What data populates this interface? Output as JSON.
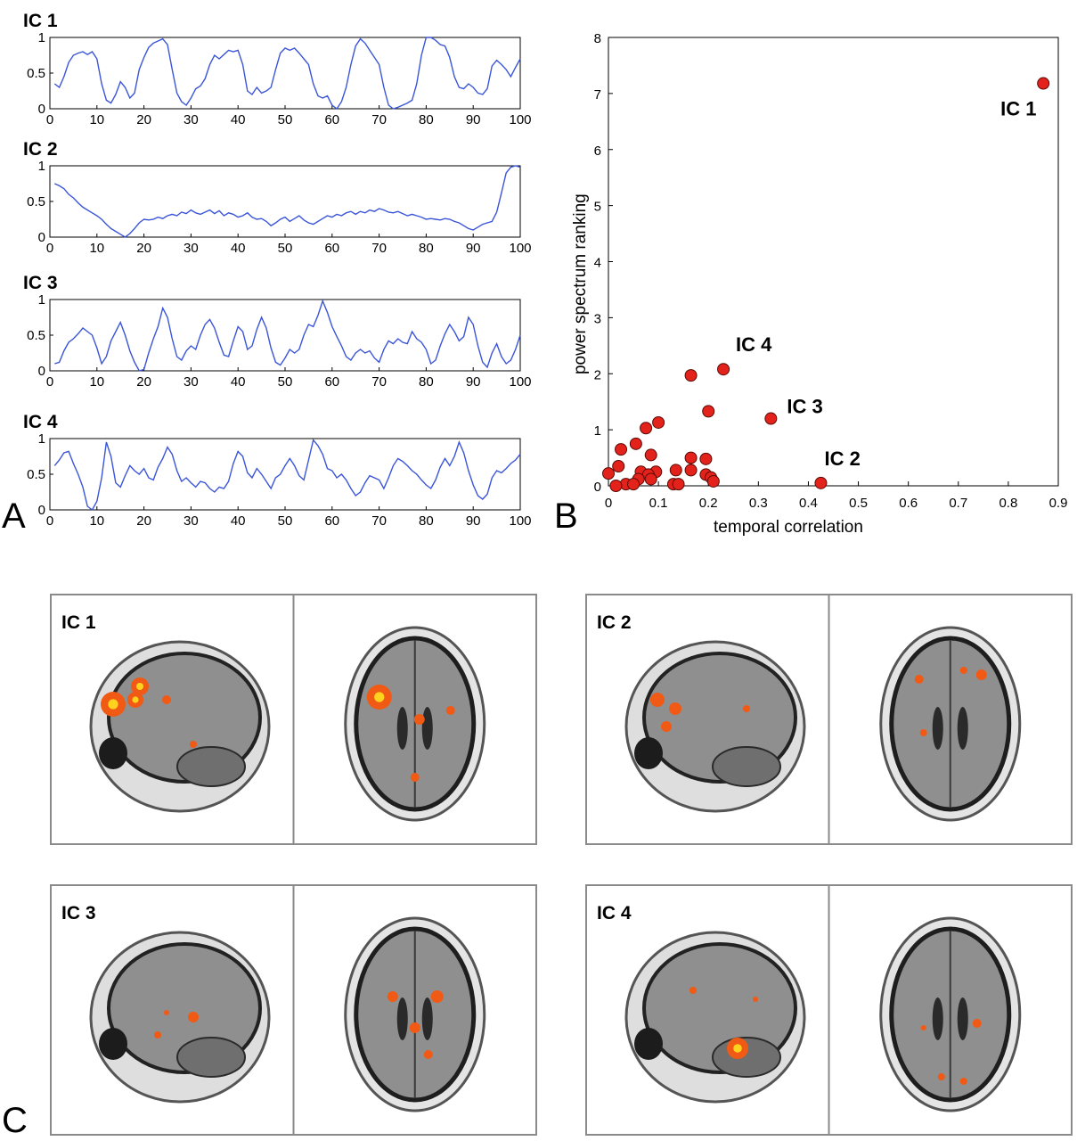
{
  "panel_letters": {
    "a": "A",
    "b": "B",
    "c": "C"
  },
  "colors": {
    "timecourse_line": "#3b55d9",
    "scatter_fill": "#e3231b",
    "scatter_stroke": "#5a0a06",
    "activation": "#f05a14",
    "activation_hot": "#ffd21f",
    "brain_gray": "#8f8f8f",
    "panel_border": "#8a8a8a"
  },
  "chart_data": [
    {
      "type": "line",
      "title": "IC 1",
      "x": [
        1,
        2,
        3,
        4,
        5,
        6,
        7,
        8,
        9,
        10,
        11,
        12,
        13,
        14,
        15,
        16,
        17,
        18,
        19,
        20,
        21,
        22,
        23,
        24,
        25,
        26,
        27,
        28,
        29,
        30,
        31,
        32,
        33,
        34,
        35,
        36,
        37,
        38,
        39,
        40,
        41,
        42,
        43,
        44,
        45,
        46,
        47,
        48,
        49,
        50,
        51,
        52,
        53,
        54,
        55,
        56,
        57,
        58,
        59,
        60,
        61,
        62,
        63,
        64,
        65,
        66,
        67,
        68,
        69,
        70,
        71,
        72,
        73,
        74,
        75,
        76,
        77,
        78,
        79,
        80,
        81,
        82,
        83,
        84,
        85,
        86,
        87,
        88,
        89,
        90,
        91,
        92,
        93,
        94,
        95,
        96,
        97,
        98,
        99,
        100
      ],
      "series": [
        {
          "values": [
            0.35,
            0.3,
            0.45,
            0.65,
            0.75,
            0.78,
            0.8,
            0.76,
            0.8,
            0.7,
            0.35,
            0.12,
            0.08,
            0.2,
            0.38,
            0.3,
            0.15,
            0.22,
            0.55,
            0.72,
            0.86,
            0.92,
            0.95,
            0.98,
            0.9,
            0.55,
            0.22,
            0.1,
            0.05,
            0.15,
            0.28,
            0.32,
            0.42,
            0.62,
            0.75,
            0.7,
            0.76,
            0.82,
            0.8,
            0.82,
            0.62,
            0.25,
            0.2,
            0.3,
            0.22,
            0.25,
            0.3,
            0.55,
            0.78,
            0.85,
            0.82,
            0.85,
            0.78,
            0.7,
            0.62,
            0.35,
            0.18,
            0.15,
            0.18,
            0.05,
            0.0,
            0.1,
            0.3,
            0.62,
            0.88,
            0.98,
            0.92,
            0.82,
            0.72,
            0.62,
            0.3,
            0.05,
            0.0,
            0.02,
            0.05,
            0.08,
            0.12,
            0.35,
            0.75,
            1.0,
            1.0,
            0.96,
            0.9,
            0.88,
            0.72,
            0.45,
            0.3,
            0.28,
            0.35,
            0.3,
            0.22,
            0.2,
            0.28,
            0.6,
            0.68,
            0.62,
            0.55,
            0.45,
            0.58,
            0.7
          ]
        }
      ],
      "xlim": [
        0,
        100
      ],
      "ylim": [
        0,
        1
      ],
      "xticks": [
        "0",
        "10",
        "20",
        "30",
        "40",
        "50",
        "60",
        "70",
        "80",
        "90",
        "100"
      ],
      "yticks": [
        "0",
        "0.5",
        "1"
      ]
    },
    {
      "type": "line",
      "title": "IC 2",
      "x": [
        1,
        2,
        3,
        4,
        5,
        6,
        7,
        8,
        9,
        10,
        11,
        12,
        13,
        14,
        15,
        16,
        17,
        18,
        19,
        20,
        21,
        22,
        23,
        24,
        25,
        26,
        27,
        28,
        29,
        30,
        31,
        32,
        33,
        34,
        35,
        36,
        37,
        38,
        39,
        40,
        41,
        42,
        43,
        44,
        45,
        46,
        47,
        48,
        49,
        50,
        51,
        52,
        53,
        54,
        55,
        56,
        57,
        58,
        59,
        60,
        61,
        62,
        63,
        64,
        65,
        66,
        67,
        68,
        69,
        70,
        71,
        72,
        73,
        74,
        75,
        76,
        77,
        78,
        79,
        80,
        81,
        82,
        83,
        84,
        85,
        86,
        87,
        88,
        89,
        90,
        91,
        92,
        93,
        94,
        95,
        96,
        97,
        98,
        99,
        100
      ],
      "series": [
        {
          "values": [
            0.75,
            0.72,
            0.68,
            0.6,
            0.55,
            0.48,
            0.42,
            0.38,
            0.34,
            0.3,
            0.25,
            0.18,
            0.12,
            0.08,
            0.04,
            0.0,
            0.05,
            0.12,
            0.2,
            0.25,
            0.24,
            0.25,
            0.28,
            0.26,
            0.3,
            0.32,
            0.3,
            0.35,
            0.33,
            0.38,
            0.34,
            0.32,
            0.35,
            0.38,
            0.33,
            0.37,
            0.3,
            0.34,
            0.32,
            0.28,
            0.3,
            0.34,
            0.28,
            0.25,
            0.26,
            0.22,
            0.16,
            0.2,
            0.25,
            0.28,
            0.22,
            0.26,
            0.3,
            0.24,
            0.2,
            0.18,
            0.22,
            0.26,
            0.3,
            0.28,
            0.32,
            0.3,
            0.34,
            0.36,
            0.32,
            0.36,
            0.34,
            0.38,
            0.36,
            0.4,
            0.38,
            0.35,
            0.34,
            0.36,
            0.33,
            0.3,
            0.32,
            0.3,
            0.28,
            0.25,
            0.26,
            0.25,
            0.24,
            0.26,
            0.25,
            0.22,
            0.2,
            0.16,
            0.12,
            0.1,
            0.14,
            0.18,
            0.2,
            0.22,
            0.35,
            0.62,
            0.9,
            0.98,
            1.0,
            0.98
          ]
        }
      ],
      "xlim": [
        0,
        100
      ],
      "ylim": [
        0,
        1
      ],
      "xticks": [
        "0",
        "10",
        "20",
        "30",
        "40",
        "50",
        "60",
        "70",
        "80",
        "90",
        "100"
      ],
      "yticks": [
        "0",
        "0.5",
        "1"
      ]
    },
    {
      "type": "line",
      "title": "IC 3",
      "x": [
        1,
        2,
        3,
        4,
        5,
        6,
        7,
        8,
        9,
        10,
        11,
        12,
        13,
        14,
        15,
        16,
        17,
        18,
        19,
        20,
        21,
        22,
        23,
        24,
        25,
        26,
        27,
        28,
        29,
        30,
        31,
        32,
        33,
        34,
        35,
        36,
        37,
        38,
        39,
        40,
        41,
        42,
        43,
        44,
        45,
        46,
        47,
        48,
        49,
        50,
        51,
        52,
        53,
        54,
        55,
        56,
        57,
        58,
        59,
        60,
        61,
        62,
        63,
        64,
        65,
        66,
        67,
        68,
        69,
        70,
        71,
        72,
        73,
        74,
        75,
        76,
        77,
        78,
        79,
        80,
        81,
        82,
        83,
        84,
        85,
        86,
        87,
        88,
        89,
        90,
        91,
        92,
        93,
        94,
        95,
        96,
        97,
        98,
        99,
        100
      ],
      "series": [
        {
          "values": [
            0.1,
            0.12,
            0.28,
            0.4,
            0.45,
            0.52,
            0.6,
            0.55,
            0.5,
            0.32,
            0.1,
            0.2,
            0.42,
            0.55,
            0.68,
            0.5,
            0.28,
            0.12,
            0.0,
            0.02,
            0.25,
            0.45,
            0.62,
            0.88,
            0.75,
            0.45,
            0.2,
            0.15,
            0.28,
            0.35,
            0.3,
            0.5,
            0.65,
            0.72,
            0.6,
            0.4,
            0.22,
            0.2,
            0.42,
            0.62,
            0.55,
            0.3,
            0.35,
            0.58,
            0.75,
            0.6,
            0.32,
            0.12,
            0.08,
            0.18,
            0.3,
            0.25,
            0.3,
            0.5,
            0.65,
            0.62,
            0.78,
            0.98,
            0.82,
            0.62,
            0.48,
            0.35,
            0.2,
            0.15,
            0.25,
            0.3,
            0.25,
            0.28,
            0.18,
            0.12,
            0.3,
            0.42,
            0.38,
            0.45,
            0.4,
            0.38,
            0.55,
            0.45,
            0.4,
            0.3,
            0.1,
            0.15,
            0.35,
            0.52,
            0.65,
            0.55,
            0.42,
            0.48,
            0.75,
            0.65,
            0.35,
            0.12,
            0.05,
            0.25,
            0.38,
            0.2,
            0.1,
            0.15,
            0.3,
            0.5
          ]
        }
      ],
      "xlim": [
        0,
        100
      ],
      "ylim": [
        0,
        1
      ],
      "xticks": [
        "0",
        "10",
        "20",
        "30",
        "40",
        "50",
        "60",
        "70",
        "80",
        "90",
        "100"
      ],
      "yticks": [
        "0",
        "0.5",
        "1"
      ]
    },
    {
      "type": "line",
      "title": "IC 4",
      "x": [
        1,
        2,
        3,
        4,
        5,
        6,
        7,
        8,
        9,
        10,
        11,
        12,
        13,
        14,
        15,
        16,
        17,
        18,
        19,
        20,
        21,
        22,
        23,
        24,
        25,
        26,
        27,
        28,
        29,
        30,
        31,
        32,
        33,
        34,
        35,
        36,
        37,
        38,
        39,
        40,
        41,
        42,
        43,
        44,
        45,
        46,
        47,
        48,
        49,
        50,
        51,
        52,
        53,
        54,
        55,
        56,
        57,
        58,
        59,
        60,
        61,
        62,
        63,
        64,
        65,
        66,
        67,
        68,
        69,
        70,
        71,
        72,
        73,
        74,
        75,
        76,
        77,
        78,
        79,
        80,
        81,
        82,
        83,
        84,
        85,
        86,
        87,
        88,
        89,
        90,
        91,
        92,
        93,
        94,
        95,
        96,
        97,
        98,
        99,
        100
      ],
      "series": [
        {
          "values": [
            0.62,
            0.7,
            0.8,
            0.82,
            0.65,
            0.5,
            0.32,
            0.05,
            0.0,
            0.12,
            0.45,
            0.95,
            0.75,
            0.38,
            0.32,
            0.48,
            0.62,
            0.55,
            0.5,
            0.58,
            0.45,
            0.42,
            0.6,
            0.72,
            0.88,
            0.78,
            0.55,
            0.4,
            0.45,
            0.38,
            0.32,
            0.4,
            0.38,
            0.3,
            0.25,
            0.32,
            0.3,
            0.4,
            0.65,
            0.82,
            0.75,
            0.52,
            0.45,
            0.58,
            0.5,
            0.4,
            0.3,
            0.45,
            0.5,
            0.62,
            0.72,
            0.62,
            0.48,
            0.42,
            0.7,
            0.98,
            0.9,
            0.78,
            0.58,
            0.55,
            0.45,
            0.5,
            0.42,
            0.3,
            0.2,
            0.25,
            0.38,
            0.48,
            0.45,
            0.42,
            0.3,
            0.45,
            0.62,
            0.72,
            0.68,
            0.62,
            0.55,
            0.5,
            0.42,
            0.35,
            0.3,
            0.42,
            0.6,
            0.72,
            0.62,
            0.75,
            0.95,
            0.8,
            0.55,
            0.35,
            0.2,
            0.15,
            0.22,
            0.45,
            0.55,
            0.52,
            0.58,
            0.65,
            0.7,
            0.78
          ]
        }
      ],
      "xlim": [
        0,
        100
      ],
      "ylim": [
        0,
        1
      ],
      "xticks": [
        "0",
        "10",
        "20",
        "30",
        "40",
        "50",
        "60",
        "70",
        "80",
        "90",
        "100"
      ],
      "yticks": [
        "0",
        "0.5",
        "1"
      ]
    },
    {
      "type": "scatter",
      "xlabel": "temporal correlation",
      "ylabel": "power spectrum ranking",
      "xlim": [
        0,
        0.9
      ],
      "ylim": [
        0,
        8
      ],
      "xticks": [
        "0",
        "0.1",
        "0.2",
        "0.3",
        "0.4",
        "0.5",
        "0.6",
        "0.7",
        "0.8",
        "0.9"
      ],
      "yticks": [
        "0",
        "1",
        "2",
        "3",
        "4",
        "5",
        "6",
        "7",
        "8"
      ],
      "points": [
        {
          "x": 0.87,
          "y": 7.18,
          "label": "IC 1"
        },
        {
          "x": 0.425,
          "y": 0.05,
          "label": "IC 2"
        },
        {
          "x": 0.325,
          "y": 1.2,
          "label": "IC 3"
        },
        {
          "x": 0.23,
          "y": 2.08,
          "label": "IC 4"
        },
        {
          "x": 0.165,
          "y": 1.97,
          "label": ""
        },
        {
          "x": 0.2,
          "y": 1.33,
          "label": ""
        },
        {
          "x": 0.1,
          "y": 1.13,
          "label": ""
        },
        {
          "x": 0.075,
          "y": 1.03,
          "label": ""
        },
        {
          "x": 0.055,
          "y": 0.75,
          "label": ""
        },
        {
          "x": 0.025,
          "y": 0.65,
          "label": ""
        },
        {
          "x": 0.085,
          "y": 0.55,
          "label": ""
        },
        {
          "x": 0.165,
          "y": 0.5,
          "label": ""
        },
        {
          "x": 0.195,
          "y": 0.48,
          "label": ""
        },
        {
          "x": 0.02,
          "y": 0.35,
          "label": ""
        },
        {
          "x": 0.0,
          "y": 0.22,
          "label": ""
        },
        {
          "x": 0.135,
          "y": 0.28,
          "label": ""
        },
        {
          "x": 0.165,
          "y": 0.28,
          "label": ""
        },
        {
          "x": 0.065,
          "y": 0.25,
          "label": ""
        },
        {
          "x": 0.095,
          "y": 0.25,
          "label": ""
        },
        {
          "x": 0.08,
          "y": 0.2,
          "label": ""
        },
        {
          "x": 0.195,
          "y": 0.2,
          "label": ""
        },
        {
          "x": 0.205,
          "y": 0.15,
          "label": ""
        },
        {
          "x": 0.06,
          "y": 0.12,
          "label": ""
        },
        {
          "x": 0.085,
          "y": 0.12,
          "label": ""
        },
        {
          "x": 0.21,
          "y": 0.08,
          "label": ""
        },
        {
          "x": 0.035,
          "y": 0.03,
          "label": ""
        },
        {
          "x": 0.05,
          "y": 0.03,
          "label": ""
        },
        {
          "x": 0.13,
          "y": 0.03,
          "label": ""
        },
        {
          "x": 0.14,
          "y": 0.03,
          "label": ""
        },
        {
          "x": 0.015,
          "y": 0.0,
          "label": ""
        }
      ]
    }
  ],
  "brain_panels": [
    {
      "label": "IC 1"
    },
    {
      "label": "IC 2"
    },
    {
      "label": "IC 3"
    },
    {
      "label": "IC 4"
    }
  ]
}
